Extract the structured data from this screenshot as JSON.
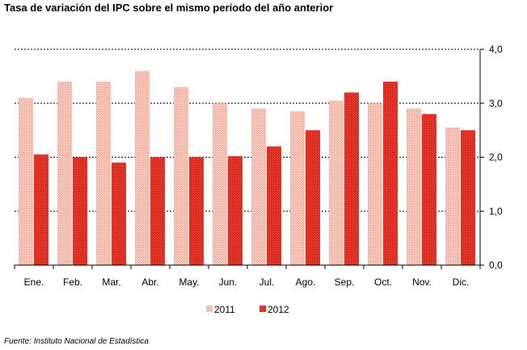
{
  "title": "Tasa de variación del IPC sobre el mismo período del año anterior",
  "source": "Fuente: Instituto Nacional de Estadística",
  "chart_data": {
    "type": "bar",
    "categories": [
      "Ene.",
      "Feb.",
      "Mar.",
      "Abr.",
      "May.",
      "Jun.",
      "Jul.",
      "Ago.",
      "Sep.",
      "Oct.",
      "Nov.",
      "Dic."
    ],
    "series": [
      {
        "name": "2011",
        "color": "#f4b8a8",
        "values": [
          3.1,
          3.4,
          3.4,
          3.6,
          3.3,
          3.0,
          2.9,
          2.85,
          3.05,
          3.0,
          2.9,
          2.55
        ]
      },
      {
        "name": "2012",
        "color": "#e0281c",
        "values": [
          2.05,
          2.0,
          1.9,
          2.0,
          2.0,
          2.02,
          2.2,
          2.5,
          3.2,
          3.4,
          2.8,
          2.5
        ]
      }
    ],
    "yticks": [
      "0,0",
      "1,0",
      "2,0",
      "3,0",
      "4,0"
    ],
    "ylim": [
      0,
      4
    ],
    "grid": true,
    "legend_position": "bottom"
  }
}
